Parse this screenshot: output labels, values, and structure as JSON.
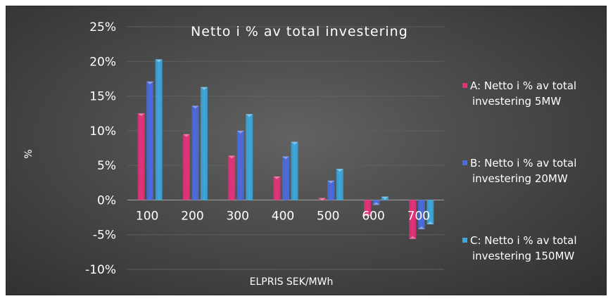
{
  "chart_data": {
    "type": "bar",
    "title": "Netto i % av total investering",
    "xlabel": "ELPRIS SEK/MWh",
    "ylabel": "%",
    "categories": [
      "100",
      "200",
      "300",
      "400",
      "500",
      "600",
      "700"
    ],
    "ylim": [
      -10,
      25
    ],
    "yticks": [
      "25%",
      "20%",
      "15%",
      "10%",
      "5%",
      "0%",
      "-5%",
      "-10%"
    ],
    "grid": true,
    "legend": "right",
    "series": [
      {
        "name_lines": [
          "A: Netto i % av total",
          "investering  5MW"
        ],
        "color": "#e8307a",
        "values": [
          12.5,
          9.5,
          6.4,
          3.4,
          0.3,
          -2.3,
          -5.6
        ]
      },
      {
        "name_lines": [
          "B: Netto i % av total",
          "investering  20MW"
        ],
        "color": "#4a6be0",
        "values": [
          17.1,
          13.6,
          10.0,
          6.3,
          2.8,
          -0.7,
          -4.2
        ]
      },
      {
        "name_lines": [
          "C: Netto i % av total",
          "investering  150MW"
        ],
        "color": "#3aa8e0",
        "values": [
          20.3,
          16.3,
          12.4,
          8.4,
          4.5,
          0.5,
          -3.5
        ]
      }
    ]
  }
}
